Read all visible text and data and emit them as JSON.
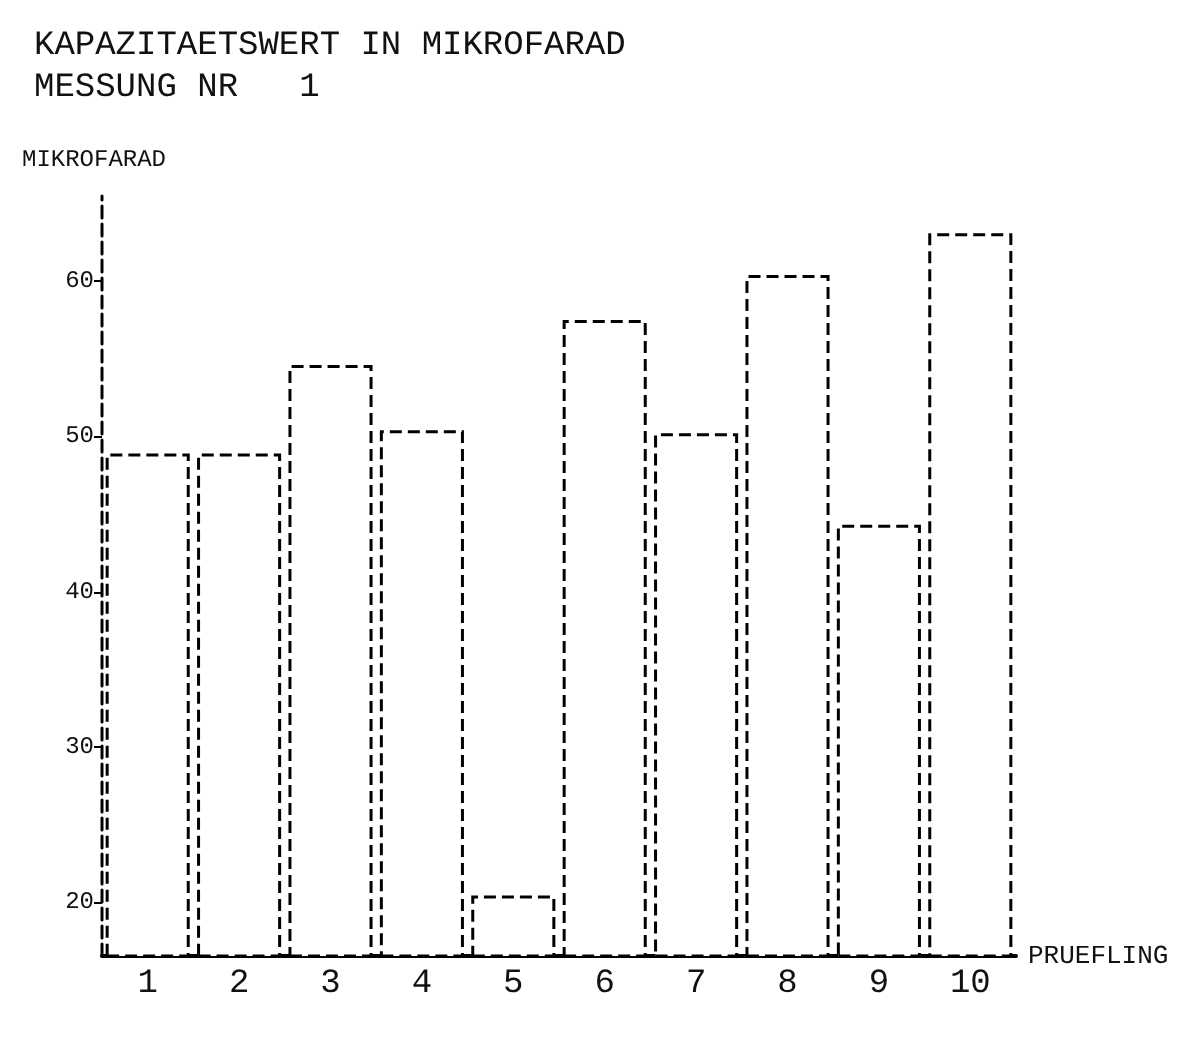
{
  "chart_data": {
    "type": "bar",
    "title": "KAPAZITAETSWERT IN MIKROFARAD",
    "subtitle": "MESSUNG NR   1",
    "ylabel": "MIKROFARAD",
    "xlabel": "PRUEFLING",
    "categories": [
      "1",
      "2",
      "3",
      "4",
      "5",
      "6",
      "7",
      "8",
      "9",
      "10"
    ],
    "values": [
      48.9,
      48.9,
      54.6,
      50.4,
      20.4,
      57.5,
      50.2,
      60.4,
      44.3,
      63.1
    ],
    "color": "#ffffff",
    "ylim": [
      16.5,
      65.5
    ],
    "yticks": [
      20,
      30,
      40,
      50,
      60
    ],
    "grid": false
  }
}
